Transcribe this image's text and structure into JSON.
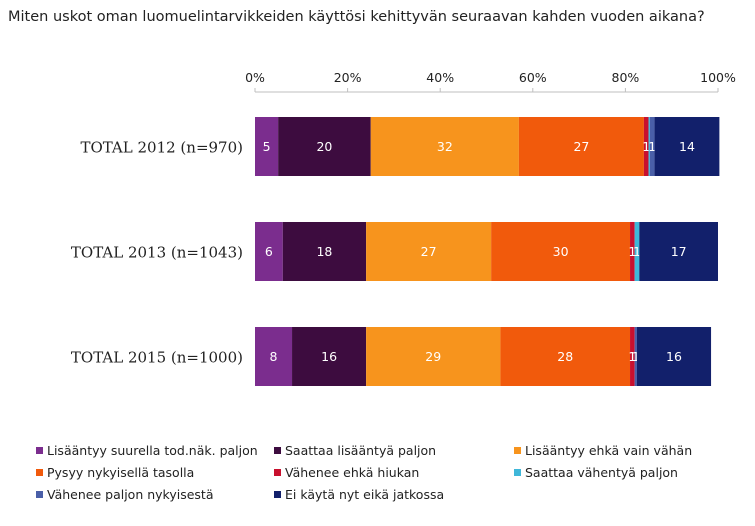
{
  "title": "Miten uskot oman luomuelintarvikkeiden käyttösi kehittyvän seuraavan kahden vuoden aikana?",
  "chart_data": {
    "type": "bar",
    "orientation": "horizontal",
    "stacked": "percent",
    "xlim": [
      0,
      100
    ],
    "x_ticks": [
      "0%",
      "20%",
      "40%",
      "60%",
      "80%",
      "100%"
    ],
    "x_axis_position": "top",
    "grid": false,
    "legend_position": "bottom",
    "categories": [
      "TOTAL 2012 (n=970)",
      "TOTAL 2013 (n=1043)",
      "TOTAL 2015 (n=1000)"
    ],
    "series": [
      {
        "name": "Lisääntyy suurella tod.näk. paljon",
        "color": "#7b2d8e",
        "values": [
          5,
          6,
          8
        ]
      },
      {
        "name": "Saattaa lisääntyä paljon",
        "color": "#3d0c3f",
        "values": [
          20,
          18,
          16
        ]
      },
      {
        "name": "Lisääntyy ehkä vain vähän",
        "color": "#f7941d",
        "values": [
          32,
          27,
          29
        ]
      },
      {
        "name": "Pysyy nykyisellä tasolla",
        "color": "#f15a0c",
        "values": [
          27,
          30,
          28
        ]
      },
      {
        "name": "Vähenee ehkä hiukan",
        "color": "#c8102e",
        "values": [
          1,
          1,
          1
        ]
      },
      {
        "name": "Saattaa vähentyä paljon",
        "color": "#3fb7d9",
        "values": [
          0.3,
          1,
          0
        ]
      },
      {
        "name": "Vähenee paljon nykyisestä",
        "color": "#4a5fa8",
        "values": [
          1,
          0,
          0.5
        ]
      },
      {
        "name": "Ei käytä nyt eikä jatkossa",
        "color": "#12206b",
        "values": [
          14,
          17,
          16
        ]
      }
    ],
    "data_labels": [
      [
        "5",
        "20",
        "32",
        "27",
        "1",
        "",
        "1",
        "14"
      ],
      [
        "6",
        "18",
        "27",
        "30",
        "1",
        "1",
        "",
        "17"
      ],
      [
        "8",
        "16",
        "29",
        "28",
        "1",
        "",
        "1",
        "16"
      ]
    ]
  }
}
